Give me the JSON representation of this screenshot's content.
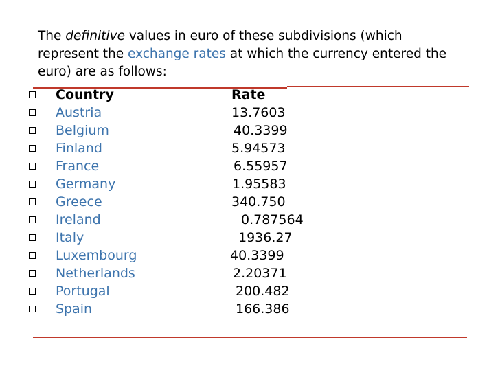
{
  "intro": {
    "parts": [
      "The ",
      "definitive",
      " values in euro of these subdivisions (which represent the ",
      "exchange rates",
      " at which the currency entered the euro) are as follows:"
    ]
  },
  "table": {
    "header": [
      "Country",
      "Rate"
    ],
    "rows": [
      [
        "Austria",
        "13.7603"
      ],
      [
        "Belgium",
        "40.3399"
      ],
      [
        "Finland",
        "5.94573"
      ],
      [
        "France",
        "6.55957"
      ],
      [
        "Germany",
        "1.95583"
      ],
      [
        "Greece",
        "340.750"
      ],
      [
        "Ireland",
        "0.787564"
      ],
      [
        "Italy",
        "1936.27"
      ],
      [
        "Luxembourg",
        "40.3399"
      ],
      [
        "Netherlands",
        "2.20371"
      ],
      [
        "Portugal",
        "200.482"
      ],
      [
        "Spain",
        "166.386"
      ]
    ]
  }
}
